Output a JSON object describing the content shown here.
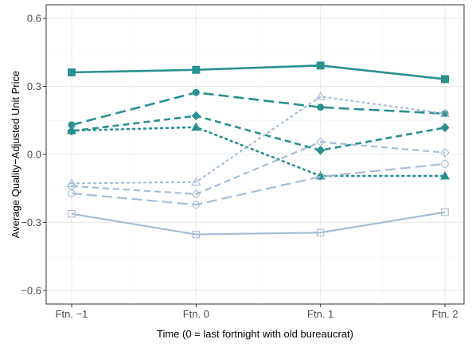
{
  "chart_data": {
    "type": "line",
    "title": "",
    "xlabel": "Time (0 = last fortnight with old bureaucrat)",
    "ylabel": "Average Quality−Adjusted Unit Price",
    "categories": [
      "Ftn. −1",
      "Ftn. 0",
      "Ftn. 1",
      "Ftn. 2"
    ],
    "ylim": [
      -0.66,
      0.66
    ],
    "yticks": [
      -0.6,
      -0.3,
      0.0,
      0.3,
      0.6
    ],
    "ytick_labels": [
      "−0.6",
      "−0.3",
      "0.0",
      "0.3",
      "0.6"
    ],
    "grid": true,
    "legend": "none",
    "colors": {
      "teal": "#2a9090",
      "light": "#a6bcd6",
      "panel_border": "#333333",
      "grid_major": "#ebebeb",
      "grid_minor": "#f5f5f5"
    },
    "series": [
      {
        "values": [
          0.362,
          0.373,
          0.392,
          0.332
        ],
        "color": "#2a9090",
        "line": "solid",
        "marker": "square",
        "filled": true
      },
      {
        "values": [
          0.13,
          0.273,
          0.208,
          0.18
        ],
        "color": "#2a9090",
        "line": "longdash",
        "marker": "circle",
        "filled": true
      },
      {
        "values": [
          0.103,
          0.17,
          0.018,
          0.118
        ],
        "color": "#2a9090",
        "line": "dash",
        "marker": "diamond",
        "filled": true
      },
      {
        "values": [
          0.105,
          0.12,
          -0.095,
          -0.095
        ],
        "color": "#2a9090",
        "line": "dotted",
        "marker": "triangle",
        "filled": true
      },
      {
        "values": [
          -0.128,
          -0.122,
          0.255,
          0.18
        ],
        "color": "#a6bcd6",
        "line": "dotted",
        "marker": "triangle",
        "filled": false
      },
      {
        "values": [
          -0.14,
          -0.175,
          0.055,
          0.008
        ],
        "color": "#a6bcd6",
        "line": "dash",
        "marker": "diamond",
        "filled": false
      },
      {
        "values": [
          -0.172,
          -0.222,
          -0.098,
          -0.042
        ],
        "color": "#a6bcd6",
        "line": "longdash",
        "marker": "circle",
        "filled": false
      },
      {
        "values": [
          -0.262,
          -0.353,
          -0.345,
          -0.255
        ],
        "color": "#a6bcd6",
        "line": "solid",
        "marker": "square",
        "filled": false
      }
    ]
  }
}
